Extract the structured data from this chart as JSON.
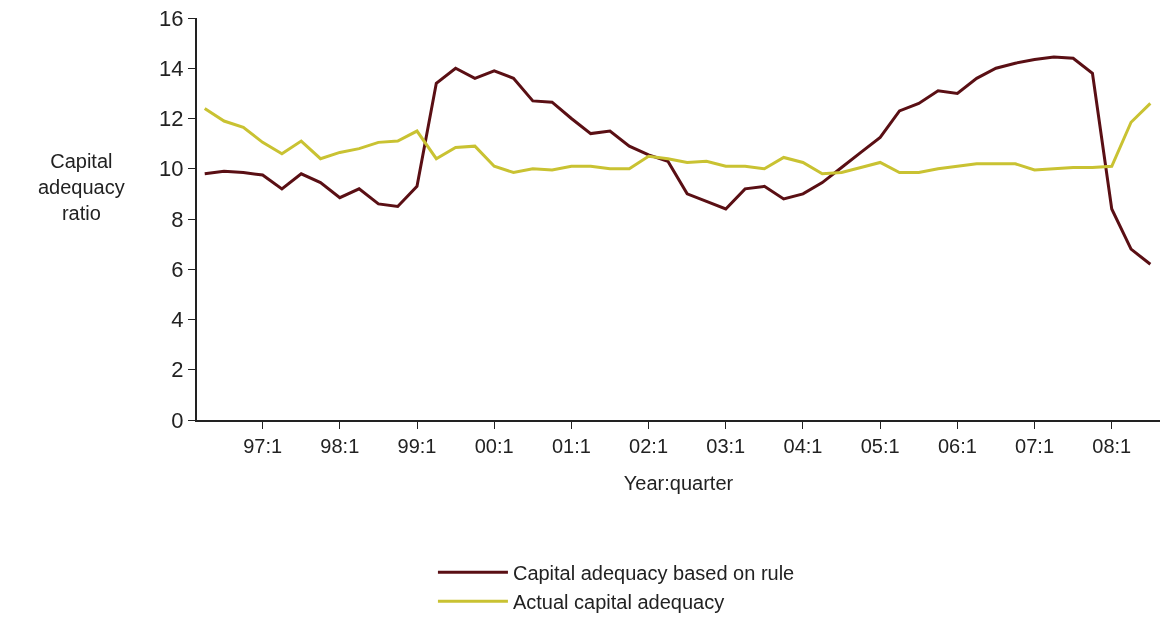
{
  "chart_data": {
    "type": "line",
    "xlabel": "Year:quarter",
    "ylabel": "Capital\nadequacy\nratio",
    "categories": [
      null,
      null,
      null,
      "97:1",
      null,
      null,
      null,
      "98:1",
      null,
      null,
      null,
      "99:1",
      null,
      null,
      null,
      "00:1",
      null,
      null,
      null,
      "01:1",
      null,
      null,
      null,
      "02:1",
      null,
      null,
      null,
      "03:1",
      null,
      null,
      null,
      "04:1",
      null,
      null,
      null,
      "05:1",
      null,
      null,
      null,
      "06:1",
      null,
      null,
      null,
      "07:1",
      null,
      null,
      null,
      "08:1",
      null,
      null
    ],
    "series": [
      {
        "name": "Capital adequacy based on rule",
        "color": "#5a0f14",
        "values": [
          9.8,
          9.9,
          9.85,
          9.75,
          9.2,
          9.8,
          9.45,
          8.85,
          9.2,
          8.6,
          8.5,
          9.3,
          13.4,
          14.0,
          13.6,
          13.9,
          13.6,
          12.7,
          12.65,
          12.0,
          11.4,
          11.5,
          10.9,
          10.55,
          10.3,
          9.0,
          8.7,
          8.4,
          9.2,
          9.3,
          8.8,
          9.0,
          9.45,
          10.05,
          10.65,
          11.25,
          12.3,
          12.6,
          13.1,
          13.0,
          13.6,
          14.0,
          14.2,
          14.35,
          14.45,
          14.4,
          13.8,
          8.4,
          6.8,
          6.2
        ]
      },
      {
        "name": "Actual capital adequacy",
        "color": "#c9c232",
        "values": [
          12.4,
          11.9,
          11.65,
          11.05,
          10.6,
          11.1,
          10.4,
          10.65,
          10.8,
          11.05,
          11.1,
          11.5,
          10.4,
          10.85,
          10.9,
          10.1,
          9.85,
          10.0,
          9.95,
          10.1,
          10.1,
          10.0,
          10.0,
          10.5,
          10.4,
          10.25,
          10.3,
          10.1,
          10.1,
          10.0,
          10.45,
          10.25,
          9.8,
          9.85,
          10.05,
          10.25,
          9.85,
          9.85,
          10.0,
          10.1,
          10.2,
          10.2,
          10.2,
          9.95,
          10.0,
          10.05,
          10.05,
          10.1,
          11.85,
          12.6
        ]
      }
    ],
    "ylim": [
      0,
      16
    ],
    "yticks": [
      0,
      2,
      4,
      6,
      8,
      10,
      12,
      14,
      16
    ],
    "legend": "bottom",
    "marker": "none",
    "line_style": "solid"
  }
}
